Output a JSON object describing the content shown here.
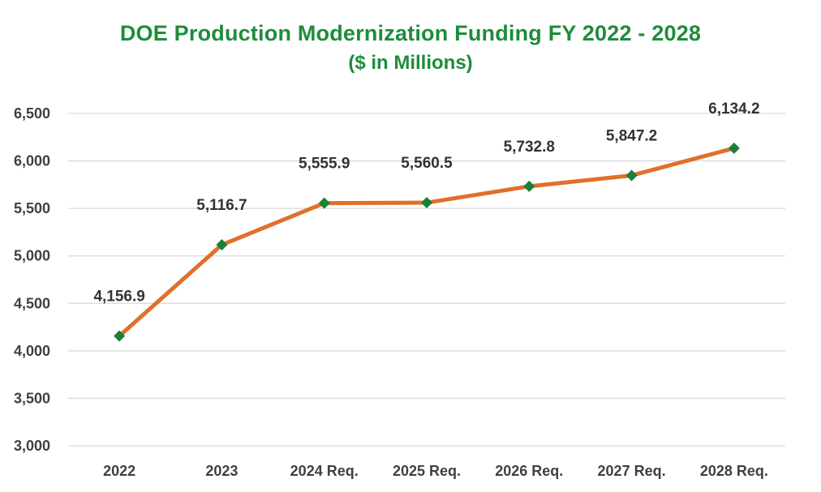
{
  "title": "DOE Production Modernization Funding FY 2022 - 2028",
  "subtitle": "($ in Millions)",
  "colors": {
    "title": "#1e8c3c",
    "line": "#e0702a",
    "marker": "#1a7f37",
    "grid": "#d9d9d9",
    "tick_text": "#404040",
    "label_text": "#333333"
  },
  "chart_data": {
    "type": "line",
    "title": "DOE Production Modernization Funding FY 2022 - 2028",
    "subtitle": "($ in Millions)",
    "categories": [
      "2022",
      "2023",
      "2024 Req.",
      "2025 Req.",
      "2026 Req.",
      "2027 Req.",
      "2028 Req."
    ],
    "series": [
      {
        "values": [
          4156.9,
          5116.7,
          5555.9,
          5560.5,
          5732.8,
          5847.2,
          6134.2
        ],
        "data_labels": [
          "4,156.9",
          "5,116.7",
          "5,555.9",
          "5,560.5",
          "5,732.8",
          "5,847.2",
          "6,134.2"
        ],
        "marker": "diamond"
      }
    ],
    "ylim": [
      3000,
      6500
    ],
    "yticks": [
      3000,
      3500,
      4000,
      4500,
      5000,
      5500,
      6000,
      6500
    ],
    "ytick_labels": [
      "3,000",
      "3,500",
      "4,000",
      "4,500",
      "5,000",
      "5,500",
      "6,000",
      "6,500"
    ],
    "xlabel": "",
    "ylabel": "",
    "grid": "horizontal",
    "legend": "none"
  }
}
